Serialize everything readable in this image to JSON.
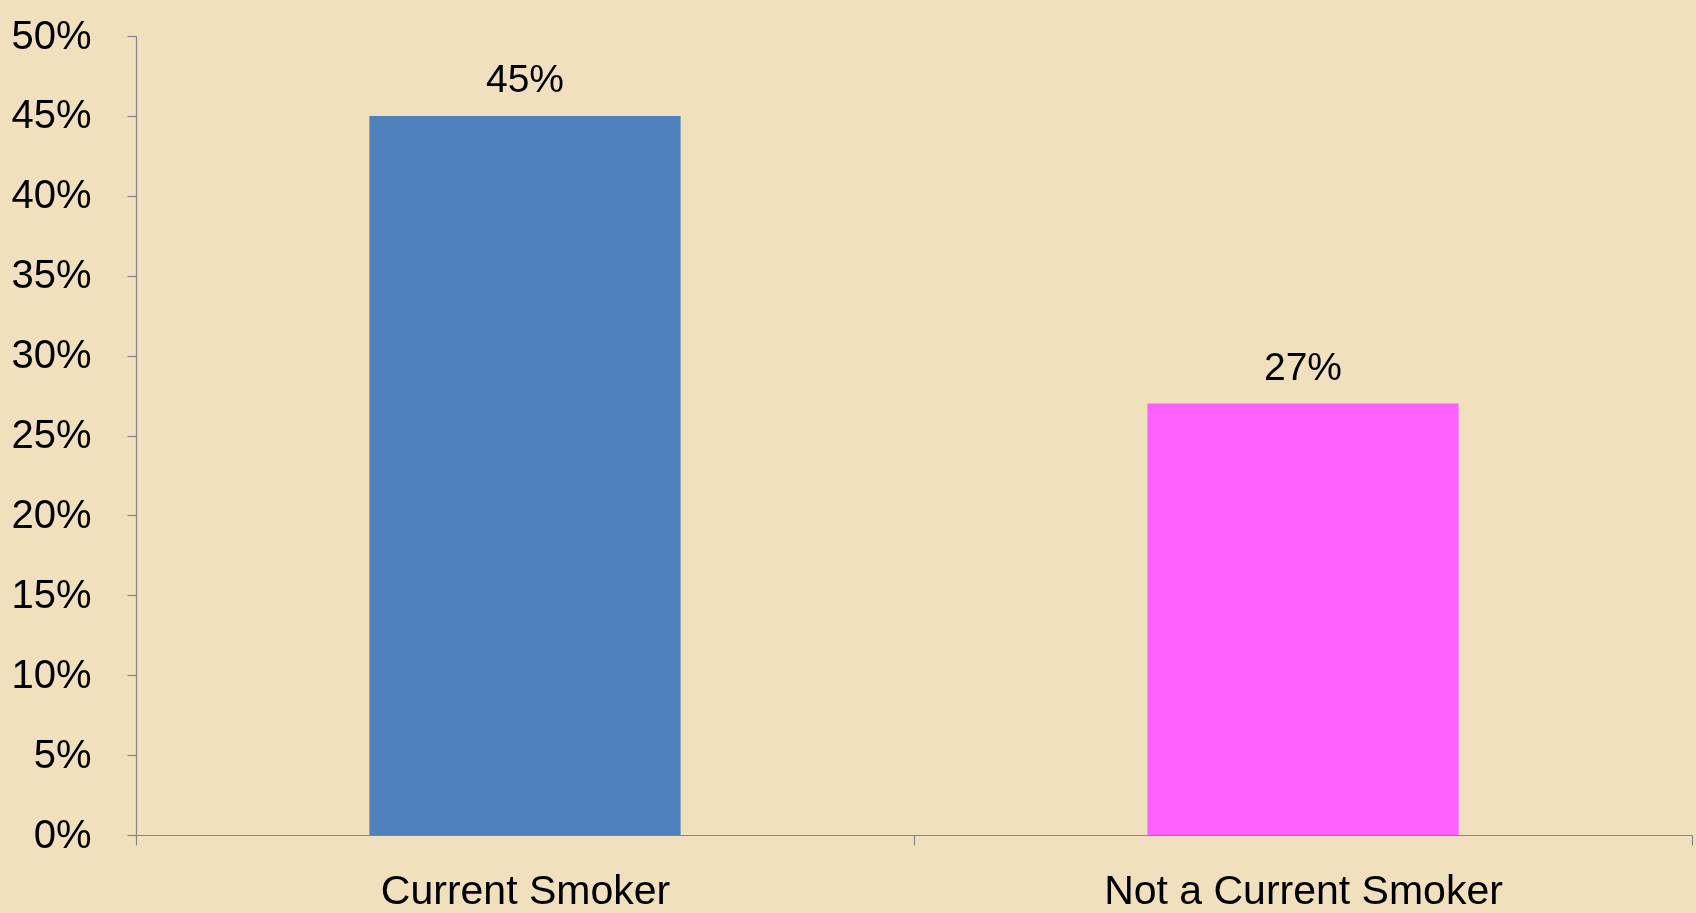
{
  "chart_data": {
    "type": "bar",
    "categories": [
      "Current Smoker",
      "Not a Current Smoker"
    ],
    "values": [
      45,
      27
    ],
    "colors": [
      "#4f81bd",
      "#ff61ff"
    ],
    "value_labels": [
      "45%",
      "27%"
    ],
    "ylim": [
      0,
      50
    ],
    "yticks": [
      {
        "value": 0,
        "label": "0%"
      },
      {
        "value": 5,
        "label": "5%"
      },
      {
        "value": 10,
        "label": "10%"
      },
      {
        "value": 15,
        "label": "15%"
      },
      {
        "value": 20,
        "label": "20%"
      },
      {
        "value": 25,
        "label": "25%"
      },
      {
        "value": 30,
        "label": "30%"
      },
      {
        "value": 35,
        "label": "35%"
      },
      {
        "value": 40,
        "label": "40%"
      },
      {
        "value": 45,
        "label": "45%"
      },
      {
        "value": 50,
        "label": "50%"
      }
    ]
  }
}
